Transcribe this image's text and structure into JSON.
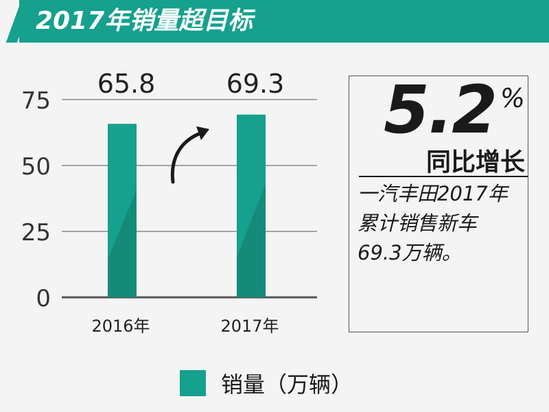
{
  "header": {
    "title": "2017年销量超目标"
  },
  "chart_data": {
    "type": "bar",
    "categories": [
      "2016年",
      "2017年"
    ],
    "values": [
      65.8,
      69.3
    ],
    "data_labels": [
      "65.8",
      "69.3"
    ],
    "yticks": [
      "0",
      "25",
      "50",
      "75"
    ],
    "ylim": [
      0,
      75
    ],
    "grid": true,
    "series": [
      {
        "name": "销量（万辆）",
        "values": [
          65.8,
          69.3
        ]
      }
    ],
    "legend_position": "bottom",
    "colors": {
      "bar": "#16a08e",
      "bar_shade": "#158a79",
      "grid": "#555555"
    }
  },
  "info": {
    "growth_value": "5.2",
    "growth_unit": "%",
    "growth_caption": "同比增长",
    "lines": [
      "一汽丰田2017年",
      "累计销售新车",
      "69.3万辆。"
    ]
  },
  "legend": {
    "label": "销量（万辆）"
  },
  "icons": {
    "growth_arrow": "curved-arrow-icon"
  }
}
